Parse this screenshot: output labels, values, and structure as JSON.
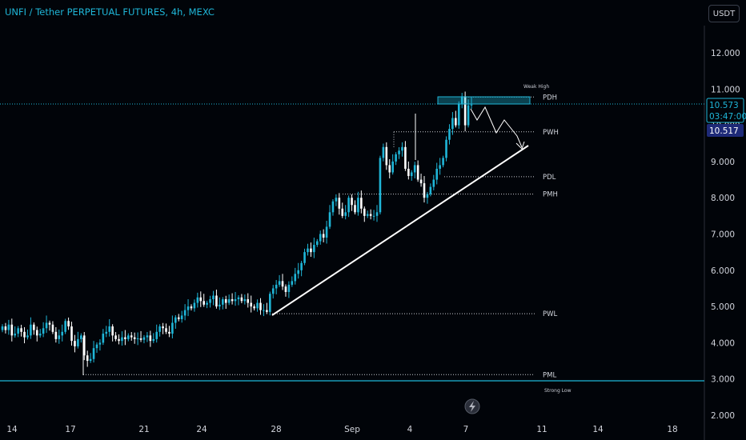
{
  "header": {
    "title": "UNFI / Tether PERPETUAL FUTURES, 4h, MEXC",
    "currency_button": "USDT"
  },
  "colors": {
    "background": "#010409",
    "bull": "#1fb6d8",
    "bear": "#ffffff",
    "accent": "#1fb6d8",
    "last_price_badge": "#1e2a78"
  },
  "chart_data": {
    "type": "candlestick",
    "symbol": "UNFI / Tether PERPETUAL FUTURES",
    "timeframe": "4h",
    "exchange": "MEXC",
    "ylim": [
      2.0,
      12.9
    ],
    "y_ticks": [
      "12.000",
      "11.000",
      "10.000",
      "9.000",
      "8.000",
      "7.000",
      "6.000",
      "5.000",
      "4.000",
      "3.000",
      "2.000"
    ],
    "x_ticks": [
      "14",
      "17",
      "21",
      "24",
      "28",
      "Sep",
      "4",
      "7",
      "11",
      "14",
      "18"
    ],
    "price_badge": {
      "price": "10.573",
      "countdown": "03:47:00"
    },
    "last_price_badge": "10.517",
    "closes": [
      4.45,
      4.35,
      4.5,
      4.2,
      4.25,
      4.4,
      4.3,
      4.15,
      4.2,
      4.5,
      4.35,
      4.2,
      4.25,
      4.4,
      4.55,
      4.5,
      4.3,
      4.1,
      4.2,
      4.3,
      4.6,
      4.45,
      4.05,
      3.9,
      4.1,
      4.2,
      3.65,
      3.5,
      3.55,
      3.85,
      3.95,
      4.0,
      4.25,
      4.3,
      4.45,
      4.2,
      4.1,
      4.05,
      4.15,
      4.1,
      4.2,
      4.15,
      4.1,
      4.12,
      4.08,
      4.15,
      4.2,
      4.05,
      4.1,
      4.3,
      4.45,
      4.4,
      4.3,
      4.25,
      4.55,
      4.7,
      4.65,
      4.75,
      4.9,
      5.0,
      4.95,
      5.1,
      5.25,
      5.15,
      5.05,
      5.1,
      5.2,
      5.3,
      5.0,
      5.05,
      5.2,
      5.1,
      5.2,
      5.15,
      5.2,
      5.25,
      5.15,
      5.2,
      5.1,
      5.0,
      4.95,
      5.1,
      4.9,
      4.9,
      4.85,
      5.35,
      5.5,
      5.6,
      5.7,
      5.55,
      5.4,
      5.6,
      5.7,
      5.9,
      6.0,
      6.2,
      6.5,
      6.6,
      6.5,
      6.7,
      6.8,
      7.0,
      6.9,
      7.2,
      7.6,
      7.9,
      8.0,
      7.7,
      7.5,
      7.6,
      8.0,
      7.8,
      7.6,
      8.0,
      7.7,
      7.5,
      7.55,
      7.5,
      7.5,
      7.6,
      9.1,
      9.4,
      8.9,
      8.7,
      9.0,
      9.2,
      9.3,
      9.4,
      8.8,
      8.6,
      8.7,
      8.9,
      8.5,
      8.4,
      8.0,
      8.1,
      8.3,
      8.5,
      8.8,
      8.9,
      9.1,
      9.6,
      9.9,
      10.2,
      10.0,
      10.6,
      10.8,
      10.0,
      10.55,
      10.57
    ]
  },
  "levels": [
    {
      "label": "PDH",
      "value": 10.78
    },
    {
      "label": "PWH",
      "value": 9.82
    },
    {
      "label": "PDL",
      "value": 8.58
    },
    {
      "label": "PMH",
      "value": 8.1
    },
    {
      "label": "PWL",
      "value": 4.8
    },
    {
      "label": "PML",
      "value": 3.12
    }
  ],
  "annotations": {
    "weak_high": "Weak High",
    "strong_low": "Strong Low"
  }
}
